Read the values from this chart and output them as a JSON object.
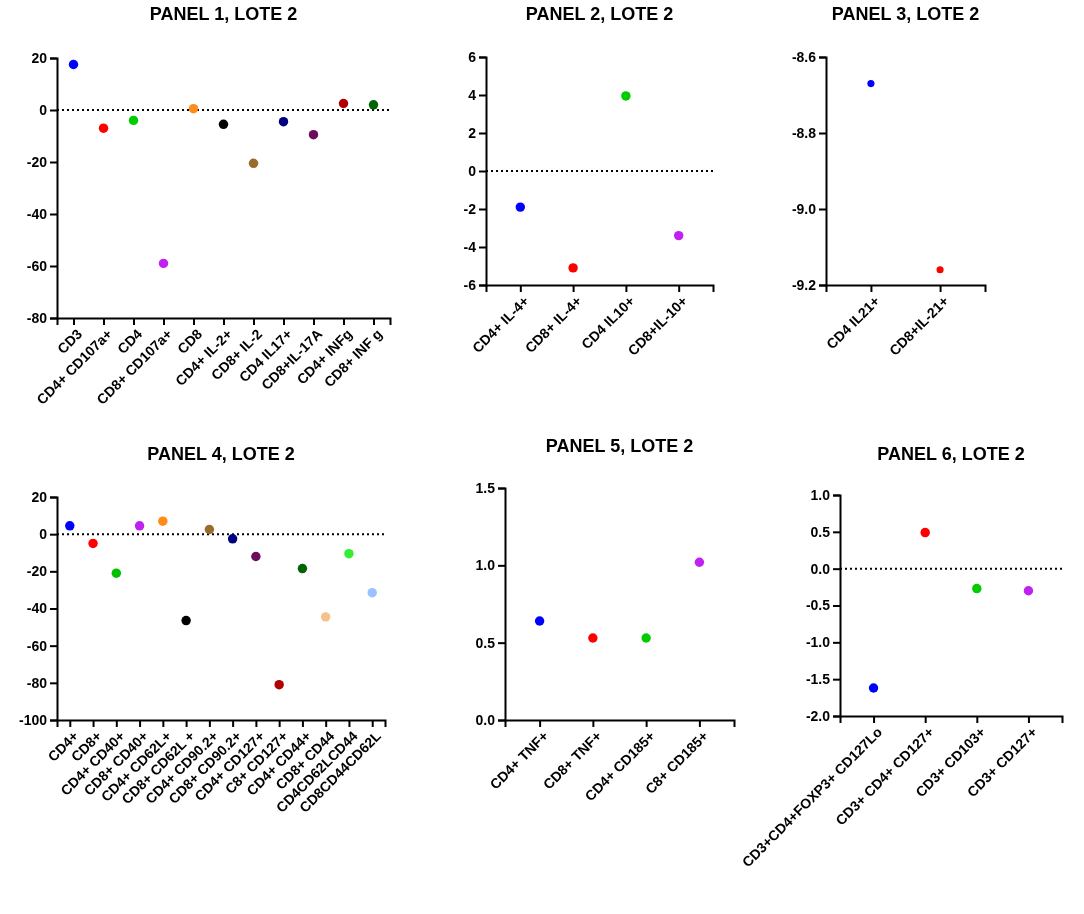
{
  "chart_data": [
    {
      "type": "scatter",
      "title": "PANEL 1, LOTE 2",
      "categories": [
        "CD3",
        "CD4+ CD107a+",
        "CD4",
        "CD8+ CD107a+",
        "CD8",
        "CD4+ IL-2+",
        "CD8+ IL-2",
        "CD4 IL17+",
        "CD8+IL-17A",
        "CD4+ INFg",
        "CD8+ INF g"
      ],
      "values": [
        17.5,
        -7,
        -4,
        -59,
        0.5,
        -5.5,
        -20.5,
        -4.5,
        -9.5,
        2.5,
        2
      ],
      "colors": [
        "#0000ff",
        "#ff0000",
        "#00cc00",
        "#c020f0",
        "#ff8c1a",
        "#000000",
        "#9a6b2a",
        "#000080",
        "#6a0d5a",
        "#b00000",
        "#006400"
      ],
      "ylim": [
        -80,
        20
      ],
      "yticks": [
        -80,
        -60,
        -40,
        -20,
        0,
        20
      ],
      "marker": "circle",
      "ref_lines": [
        {
          "axis": "y",
          "value": 0,
          "line_style": "dotted"
        }
      ]
    },
    {
      "type": "scatter",
      "title": "PANEL 2, LOTE 2",
      "categories": [
        "CD4+ IL-4+",
        "CD8+ IL-4+",
        "CD4 IL10+",
        "CD8+IL-10+"
      ],
      "values": [
        -1.9,
        -5.1,
        3.95,
        -3.4
      ],
      "colors": [
        "#0000ff",
        "#ff0000",
        "#00cc00",
        "#c020f0"
      ],
      "ylim": [
        -6,
        6
      ],
      "yticks": [
        -6,
        -4,
        -2,
        0,
        2,
        4,
        6
      ],
      "marker": "circle",
      "ref_lines": [
        {
          "axis": "y",
          "value": 0,
          "line_style": "dotted"
        }
      ]
    },
    {
      "type": "scatter",
      "title": "PANEL 3, LOTE 2",
      "categories": [
        "CD4 IL21+",
        "CD8+IL-21+"
      ],
      "values": [
        -8.67,
        -9.16
      ],
      "colors": [
        "#0000ff",
        "#ff0000"
      ],
      "ylim": [
        -9.2,
        -8.6
      ],
      "yticks": [
        -9.2,
        {
          "value": -9,
          "label": "-9.0"
        },
        -8.8,
        -8.6
      ],
      "marker": "circle"
    },
    {
      "type": "scatter",
      "title": "PANEL 4, LOTE 2",
      "categories": [
        "CD4+",
        "CD8+",
        "CD4+ CD40+",
        "CD8+ CD40+",
        "CD4+ CD62L+",
        "CD8+ CD62L +",
        "CD4+ CD90.2+",
        "CD8+ CD90.2+",
        "CD4+ CD127+",
        "C8+ CD127+",
        "CD4+ CD44+",
        "CD8+ CD44",
        "CD4CD62LCD44",
        "CD8CD44CD62L"
      ],
      "values": [
        4.5,
        -5,
        -21,
        4.5,
        7,
        -46.5,
        2.5,
        -2.5,
        -12,
        -81,
        -18.5,
        -44.5,
        -10.5,
        -31.5
      ],
      "colors": [
        "#0000ff",
        "#ff0000",
        "#00c000",
        "#c020f0",
        "#ff8c1a",
        "#000000",
        "#9a6b2a",
        "#000080",
        "#6a0d5a",
        "#b00000",
        "#006400",
        "#f5c08a",
        "#33ee33",
        "#99c2ff"
      ],
      "ylim": [
        -100,
        20
      ],
      "yticks": [
        -100,
        -80,
        -60,
        -40,
        -20,
        0,
        20
      ],
      "marker": "circle",
      "ref_lines": [
        {
          "axis": "y",
          "value": 0,
          "line_style": "dotted"
        }
      ]
    },
    {
      "type": "scatter",
      "title": "PANEL 5, LOTE 2",
      "categories": [
        "CD4+ TNF+",
        "CD8+ TNF+",
        "CD4+ CD185+",
        "C8+ CD185+"
      ],
      "values": [
        0.64,
        0.53,
        0.53,
        1.02
      ],
      "colors": [
        "#0000ff",
        "#ff0000",
        "#00cc00",
        "#c020f0"
      ],
      "ylim": [
        0,
        1.5
      ],
      "yticks": [
        {
          "value": 0,
          "label": "0.0"
        },
        0.5,
        {
          "value": 1,
          "label": "1.0"
        },
        1.5
      ],
      "marker": "circle"
    },
    {
      "type": "scatter",
      "title": "PANEL 6, LOTE 2",
      "categories": [
        "CD3+CD4+FOXP3+ CD127Lo",
        "CD3+ CD4+ CD127+",
        "CD3+ CD103+",
        "CD3+ CD127+"
      ],
      "values": [
        -1.62,
        0.49,
        -0.27,
        -0.3
      ],
      "colors": [
        "#0000ff",
        "#ff0000",
        "#00cc00",
        "#c020f0"
      ],
      "ylim": [
        -2,
        1
      ],
      "yticks": [
        {
          "value": -2,
          "label": "-2.0"
        },
        -1.5,
        {
          "value": -1,
          "label": "-1.0"
        },
        -0.5,
        {
          "value": 0,
          "label": "0.0"
        },
        0.5,
        {
          "value": 1,
          "label": "1.0"
        }
      ],
      "marker": "circle",
      "ref_lines": [
        {
          "axis": "y",
          "value": 0,
          "line_style": "dotted"
        }
      ]
    }
  ]
}
